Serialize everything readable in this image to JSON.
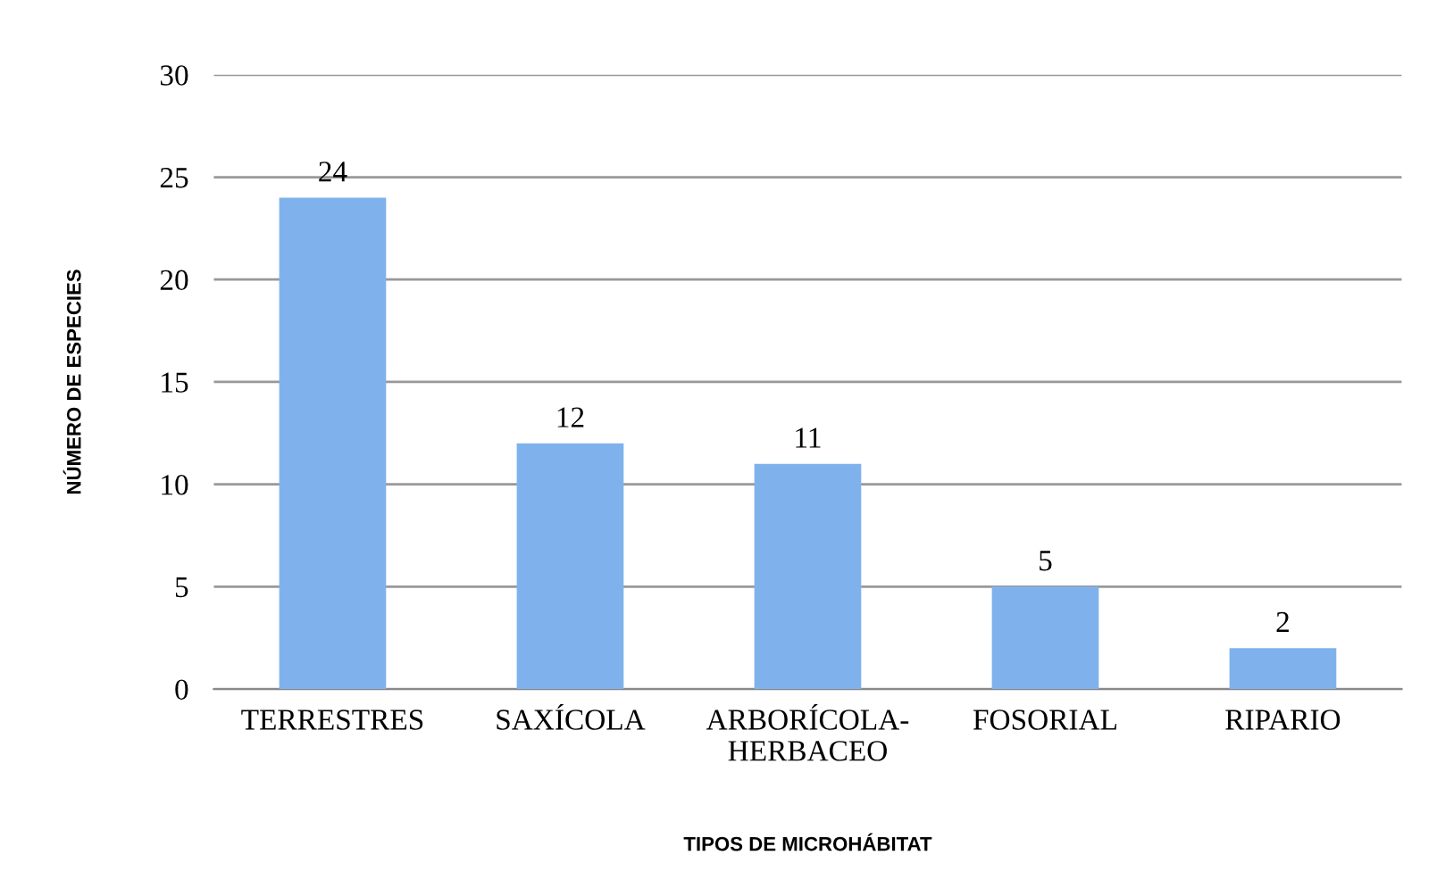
{
  "chart_data": {
    "type": "bar",
    "xlabel": "TIPOS DE MICROHÁBITAT",
    "ylabel": "NÚMERO DE ESPECIES",
    "categories": [
      "TERRESTRES",
      "SAXÍCOLA",
      "ARBORÍCOLA-\nHERBACEO",
      "FOSORIAL",
      "RIPARIO"
    ],
    "values": [
      24,
      12,
      11,
      5,
      2
    ],
    "color": "#7fb2ec",
    "ylim": [
      0,
      30
    ],
    "yticks": [
      0,
      5,
      10,
      15,
      20,
      25,
      30
    ],
    "grid": "y",
    "data_labels": true
  }
}
